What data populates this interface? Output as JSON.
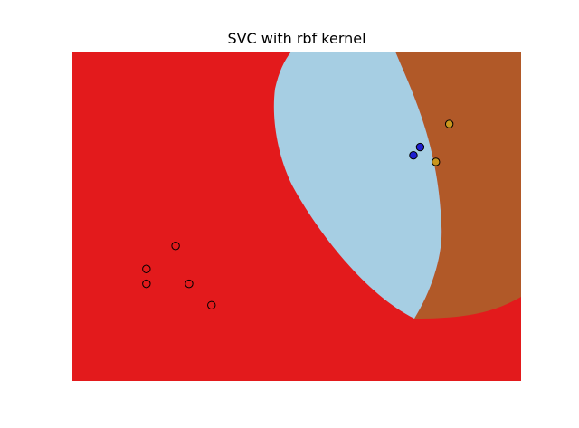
{
  "chart_data": {
    "type": "scatter",
    "title": "SVC with rbf kernel",
    "xlabel": "",
    "ylabel": "",
    "xlim": [
      0,
      10
    ],
    "ylim": [
      0,
      10
    ],
    "grid": false,
    "axes_visible": false,
    "background_regions": [
      {
        "class": "class-0",
        "color": "#e31a1c"
      },
      {
        "class": "class-1",
        "color": "#a6cee3"
      },
      {
        "class": "class-2",
        "color": "#b15928"
      }
    ],
    "series": [
      {
        "class": "class-0",
        "color": "#e31a1c",
        "points": [
          {
            "x": 2.3,
            "y": 4.1
          },
          {
            "x": 1.65,
            "y": 3.4
          },
          {
            "x": 1.65,
            "y": 2.95
          },
          {
            "x": 2.6,
            "y": 2.95
          },
          {
            "x": 3.1,
            "y": 2.3
          }
        ]
      },
      {
        "class": "class-1",
        "color": "#1f1fd0",
        "points": [
          {
            "x": 7.75,
            "y": 7.1
          },
          {
            "x": 7.6,
            "y": 6.85
          }
        ]
      },
      {
        "class": "class-2",
        "color": "#c8961e",
        "points": [
          {
            "x": 8.4,
            "y": 7.8
          },
          {
            "x": 8.1,
            "y": 6.65
          }
        ]
      }
    ]
  }
}
